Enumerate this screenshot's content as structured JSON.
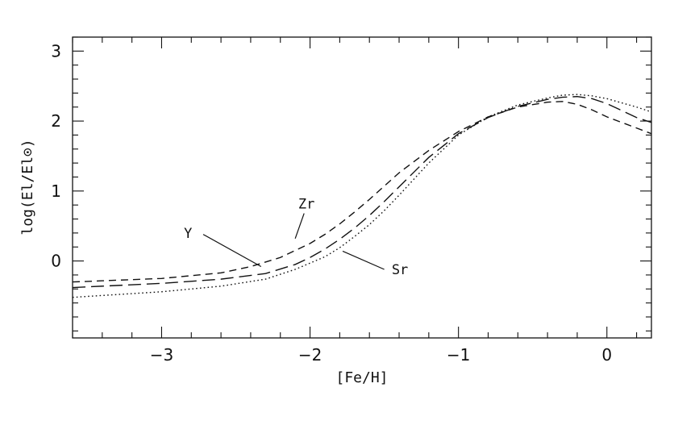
{
  "chart_data": {
    "type": "line",
    "xlabel": "[Fe/H]",
    "ylabel": "log(El/El⊙)",
    "xlim": [
      -3.6,
      0.3
    ],
    "ylim": [
      -1.1,
      3.2
    ],
    "xticks": [
      {
        "value": -3,
        "label": "−3"
      },
      {
        "value": -2,
        "label": "−2"
      },
      {
        "value": -1,
        "label": "−1"
      },
      {
        "value": 0,
        "label": "0"
      }
    ],
    "yticks": [
      {
        "value": 0,
        "label": "0"
      },
      {
        "value": 1,
        "label": "1"
      },
      {
        "value": 2,
        "label": "2"
      },
      {
        "value": 3,
        "label": "3"
      }
    ],
    "x_minor_step": 0.2,
    "y_minor_step": 0.2,
    "grid": false,
    "series": [
      {
        "name": "Y",
        "style": "long-dash",
        "x": [
          -3.6,
          -3.0,
          -2.6,
          -2.3,
          -2.1,
          -2.0,
          -1.9,
          -1.8,
          -1.7,
          -1.6,
          -1.5,
          -1.4,
          -1.2,
          -1.0,
          -0.8,
          -0.6,
          -0.4,
          -0.3,
          -0.2,
          -0.1,
          0.0,
          0.1,
          0.2,
          0.3
        ],
        "y": [
          -0.38,
          -0.32,
          -0.26,
          -0.18,
          -0.05,
          0.05,
          0.17,
          0.31,
          0.47,
          0.65,
          0.85,
          1.06,
          1.48,
          1.82,
          2.05,
          2.21,
          2.31,
          2.34,
          2.35,
          2.32,
          2.25,
          2.15,
          2.05,
          1.98
        ]
      },
      {
        "name": "Zr",
        "style": "short-dash",
        "x": [
          -3.6,
          -3.0,
          -2.6,
          -2.4,
          -2.2,
          -2.0,
          -1.9,
          -1.8,
          -1.7,
          -1.6,
          -1.5,
          -1.4,
          -1.2,
          -1.0,
          -0.8,
          -0.6,
          -0.4,
          -0.3,
          -0.2,
          -0.1,
          0.0,
          0.1,
          0.2,
          0.3
        ],
        "y": [
          -0.3,
          -0.25,
          -0.17,
          -0.08,
          0.05,
          0.25,
          0.38,
          0.53,
          0.7,
          0.88,
          1.07,
          1.26,
          1.58,
          1.85,
          2.06,
          2.2,
          2.27,
          2.28,
          2.24,
          2.16,
          2.06,
          1.98,
          1.9,
          1.82
        ]
      },
      {
        "name": "Sr",
        "style": "dotted",
        "x": [
          -3.6,
          -3.0,
          -2.6,
          -2.3,
          -2.1,
          -1.9,
          -1.8,
          -1.7,
          -1.6,
          -1.5,
          -1.4,
          -1.2,
          -1.0,
          -0.8,
          -0.6,
          -0.4,
          -0.3,
          -0.2,
          -0.1,
          0.0,
          0.1,
          0.2,
          0.3
        ],
        "y": [
          -0.52,
          -0.44,
          -0.36,
          -0.26,
          -0.12,
          0.06,
          0.19,
          0.35,
          0.52,
          0.72,
          0.94,
          1.4,
          1.8,
          2.06,
          2.23,
          2.33,
          2.37,
          2.38,
          2.36,
          2.32,
          2.26,
          2.2,
          2.13
        ]
      }
    ],
    "annotations": [
      {
        "text": "Y",
        "label_at": [
          -2.85,
          0.4
        ],
        "line_from": [
          -2.72,
          0.38
        ],
        "line_to": [
          -2.33,
          -0.08
        ]
      },
      {
        "text": "Zr",
        "label_at": [
          -2.08,
          0.82
        ],
        "line_from": [
          -2.04,
          0.68
        ],
        "line_to": [
          -2.1,
          0.32
        ]
      },
      {
        "text": "Sr",
        "label_at": [
          -1.45,
          -0.12
        ],
        "line_from": [
          -1.5,
          -0.12
        ],
        "line_to": [
          -1.78,
          0.14
        ]
      }
    ]
  }
}
